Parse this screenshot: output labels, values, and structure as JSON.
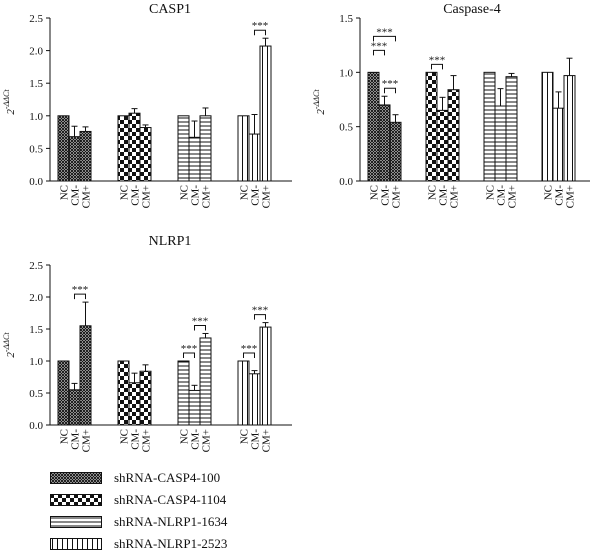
{
  "chart_data": [
    {
      "type": "bar",
      "title": "CASP1",
      "ylabel": "2^-ΔΔCt",
      "ylim": [
        0,
        2.5
      ],
      "yticks": [
        "0.0",
        "0.5",
        "1.0",
        "1.5",
        "2.0",
        "2.5"
      ],
      "categories": [
        "NC",
        "CM-",
        "CM+"
      ],
      "series": [
        {
          "name": "shRNA-CASP4-100",
          "values": [
            1.0,
            0.68,
            0.76
          ],
          "errors": [
            0.0,
            0.16,
            0.07
          ]
        },
        {
          "name": "shRNA-CASP4-1104",
          "values": [
            1.0,
            1.04,
            0.82
          ],
          "errors": [
            0.0,
            0.07,
            0.04
          ]
        },
        {
          "name": "shRNA-NLRP1-1634",
          "values": [
            1.0,
            0.67,
            1.0
          ],
          "errors": [
            0.0,
            0.25,
            0.12
          ]
        },
        {
          "name": "shRNA-NLRP1-2523",
          "values": [
            1.0,
            0.72,
            2.07
          ],
          "errors": [
            0.0,
            0.3,
            0.12
          ]
        }
      ],
      "significance": [
        {
          "series": 3,
          "from": 1,
          "to": 2,
          "label": "***"
        }
      ]
    },
    {
      "type": "bar",
      "title": "Caspase-4",
      "ylabel": "2^-ΔΔCt",
      "ylim": [
        0,
        1.5
      ],
      "yticks": [
        "0.0",
        "0.5",
        "1.0",
        "1.5"
      ],
      "categories": [
        "NC",
        "CM-",
        "CM+"
      ],
      "series": [
        {
          "name": "shRNA-CASP4-100",
          "values": [
            1.0,
            0.7,
            0.54
          ],
          "errors": [
            0.0,
            0.08,
            0.07
          ]
        },
        {
          "name": "shRNA-CASP4-1104",
          "values": [
            1.0,
            0.65,
            0.84
          ],
          "errors": [
            0.0,
            0.12,
            0.13
          ]
        },
        {
          "name": "shRNA-NLRP1-1634",
          "values": [
            1.0,
            0.69,
            0.96
          ],
          "errors": [
            0.0,
            0.16,
            0.03
          ]
        },
        {
          "name": "shRNA-NLRP1-2523",
          "values": [
            1.0,
            0.67,
            0.97
          ],
          "errors": [
            0.0,
            0.15,
            0.16
          ]
        }
      ],
      "significance": [
        {
          "series": 0,
          "from": 0,
          "to": 2,
          "label": "***",
          "level": 2
        },
        {
          "series": 0,
          "from": 0,
          "to": 1,
          "label": "***",
          "level": 1
        },
        {
          "series": 0,
          "from": 1,
          "to": 2,
          "label": "***",
          "level": 0
        },
        {
          "series": 1,
          "from": 0,
          "to": 1,
          "label": "***",
          "level": 0
        }
      ]
    },
    {
      "type": "bar",
      "title": "NLRP1",
      "ylabel": "2^-ΔΔCt",
      "ylim": [
        0,
        2.5
      ],
      "yticks": [
        "0.0",
        "0.5",
        "1.0",
        "1.5",
        "2.0",
        "2.5"
      ],
      "categories": [
        "NC",
        "CM-",
        "CM+"
      ],
      "series": [
        {
          "name": "shRNA-CASP4-100",
          "values": [
            1.0,
            0.55,
            1.55
          ],
          "errors": [
            0.0,
            0.1,
            0.37
          ]
        },
        {
          "name": "shRNA-CASP4-1104",
          "values": [
            1.0,
            0.66,
            0.84
          ],
          "errors": [
            0.0,
            0.15,
            0.1
          ]
        },
        {
          "name": "shRNA-NLRP1-1634",
          "values": [
            1.0,
            0.54,
            1.36
          ],
          "errors": [
            0.0,
            0.08,
            0.07
          ]
        },
        {
          "name": "shRNA-NLRP1-2523",
          "values": [
            1.0,
            0.8,
            1.53
          ],
          "errors": [
            0.0,
            0.05,
            0.07
          ]
        }
      ],
      "significance": [
        {
          "series": 0,
          "from": 1,
          "to": 2,
          "label": "***"
        },
        {
          "series": 2,
          "from": 0,
          "to": 1,
          "label": "***"
        },
        {
          "series": 2,
          "from": 1,
          "to": 2,
          "label": "***"
        },
        {
          "series": 3,
          "from": 0,
          "to": 1,
          "label": "***"
        },
        {
          "series": 3,
          "from": 1,
          "to": 2,
          "label": "***"
        }
      ]
    }
  ],
  "legend": {
    "placement": "bottom-left",
    "items": [
      {
        "label": "shRNA-CASP4-100",
        "pattern": "crosshatch"
      },
      {
        "label": "shRNA-CASP4-1104",
        "pattern": "checker"
      },
      {
        "label": "shRNA-NLRP1-1634",
        "pattern": "horizontal-lines"
      },
      {
        "label": "shRNA-NLRP1-2523",
        "pattern": "vertical-lines"
      }
    ]
  }
}
